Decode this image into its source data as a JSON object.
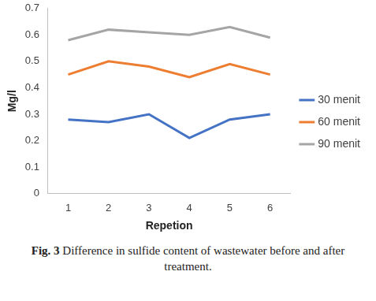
{
  "chart_data": {
    "type": "line",
    "title": "Fig. 3 Difference in sulfide content of wastewater before and after treatment.",
    "x_label": "Repetion",
    "y_label": "Mg/l",
    "categories": [
      "1",
      "2",
      "3",
      "4",
      "5",
      "6"
    ],
    "series": [
      {
        "name": "30 menit",
        "color": "#4472c4",
        "values": [
          0.28,
          0.27,
          0.3,
          0.21,
          0.28,
          0.3
        ]
      },
      {
        "name": "60 menit",
        "color": "#ed7d31",
        "values": [
          0.45,
          0.5,
          0.48,
          0.44,
          0.49,
          0.45
        ]
      },
      {
        "name": "90 menit",
        "color": "#a5a5a5",
        "values": [
          0.58,
          0.62,
          0.61,
          0.6,
          0.63,
          0.59
        ]
      }
    ],
    "ylim": [
      0,
      0.7
    ],
    "yticks": [
      0,
      0.1,
      0.2,
      0.3,
      0.4,
      0.5,
      0.6,
      0.7
    ],
    "grid": false,
    "legend": "right",
    "marker": "none",
    "line_style": "solid"
  }
}
